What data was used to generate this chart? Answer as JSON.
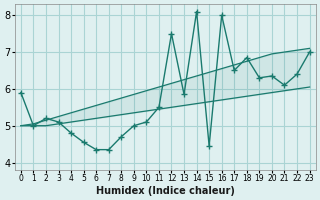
{
  "x": [
    0,
    1,
    2,
    3,
    4,
    5,
    6,
    7,
    8,
    9,
    10,
    11,
    12,
    13,
    14,
    15,
    16,
    17,
    18,
    19,
    20,
    21,
    22,
    23
  ],
  "y": [
    5.9,
    5.0,
    5.2,
    5.1,
    4.8,
    4.55,
    4.35,
    4.35,
    4.7,
    5.0,
    5.1,
    5.5,
    7.5,
    5.85,
    8.1,
    4.45,
    8.0,
    6.5,
    6.85,
    6.3,
    6.35,
    6.1,
    6.4,
    7.0
  ],
  "lower_band": [
    5.0,
    5.0,
    5.0,
    5.05,
    5.1,
    5.15,
    5.2,
    5.25,
    5.3,
    5.35,
    5.4,
    5.45,
    5.5,
    5.55,
    5.6,
    5.65,
    5.7,
    5.75,
    5.8,
    5.85,
    5.9,
    5.95,
    6.0,
    6.05
  ],
  "upper_band": [
    5.0,
    5.05,
    5.15,
    5.25,
    5.35,
    5.45,
    5.55,
    5.65,
    5.75,
    5.85,
    5.95,
    6.05,
    6.15,
    6.25,
    6.35,
    6.45,
    6.55,
    6.65,
    6.75,
    6.85,
    6.95,
    7.0,
    7.05,
    7.1
  ],
  "line_color": "#1a7a6e",
  "bg_color": "#dff0f0",
  "grid_color": "#aad4d4",
  "xlabel": "Humidex (Indice chaleur)",
  "ylim": [
    3.8,
    8.3
  ],
  "xlim": [
    -0.5,
    23.5
  ],
  "yticks": [
    4,
    5,
    6,
    7,
    8
  ],
  "xtick_labels": [
    "0",
    "1",
    "2",
    "3",
    "4",
    "5",
    "6",
    "7",
    "8",
    "9",
    "10",
    "11",
    "12",
    "13",
    "14",
    "15",
    "16",
    "17",
    "18",
    "19",
    "20",
    "21",
    "22",
    "23"
  ]
}
